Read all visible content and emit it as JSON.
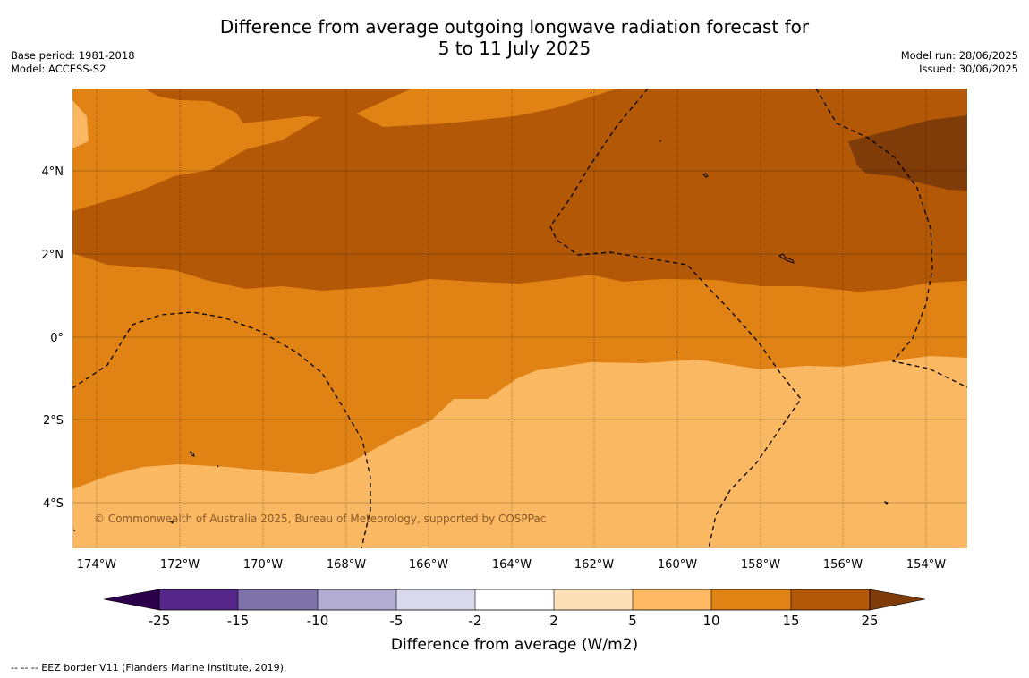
{
  "title": {
    "line1": "Difference from average outgoing longwave radiation forecast for",
    "line2": "5 to 11 July 2025"
  },
  "meta_left": {
    "base_period": "Base period: 1981-2018",
    "model": "Model: ACCESS-S2"
  },
  "meta_right": {
    "model_run": "Model run: 28/06/2025",
    "issued": "Issued: 30/06/2025"
  },
  "map": {
    "lon_labels": [
      "174°W",
      "172°W",
      "170°W",
      "168°W",
      "166°W",
      "164°W",
      "162°W",
      "160°W",
      "158°W",
      "156°W",
      "154°W"
    ],
    "lat_labels": [
      "4°N",
      "2°N",
      "0°",
      "2°S",
      "4°S"
    ],
    "copyright": "© Commonwealth of Australia 2025, Bureau of Meteorology, supported by COSPPac",
    "colors": {
      "level_5_10": "#fbb862",
      "level_10_15": "#e08214",
      "level_15_25": "#b35806",
      "level_gt_25": "#7f3b08"
    }
  },
  "colorbar": {
    "ticks": [
      "-25",
      "-15",
      "-10",
      "-5",
      "-2",
      "2",
      "5",
      "10",
      "15",
      "25"
    ],
    "colors": [
      "#2d004b",
      "#542788",
      "#8073ac",
      "#b2abd2",
      "#d8daeb",
      "#ffffff",
      "#fee0b6",
      "#fdb863",
      "#e08214",
      "#b35806",
      "#7f3b08"
    ],
    "label": "Difference from average (W/m2)"
  },
  "footer_note": "--  --  -- EEZ border V11 (Flanders Marine Institute, 2019)."
}
